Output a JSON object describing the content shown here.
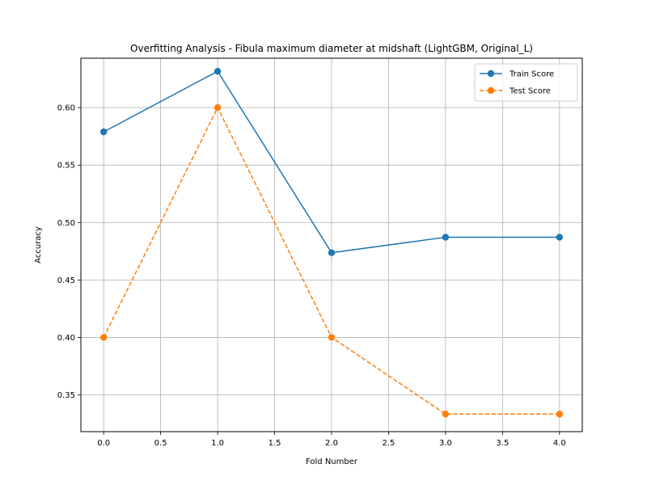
{
  "chart_data": {
    "type": "line",
    "title": "Overfitting Analysis - Fibula maximum diameter at midshaft (LightGBM, Original_L)",
    "xlabel": "Fold Number",
    "ylabel": "Accuracy",
    "x": [
      0,
      1,
      2,
      3,
      4
    ],
    "xlim": [
      -0.2,
      4.2
    ],
    "ylim": [
      0.318,
      0.643
    ],
    "xticks": [
      "0.0",
      "0.5",
      "1.0",
      "1.5",
      "2.0",
      "2.5",
      "3.0",
      "3.5",
      "4.0"
    ],
    "yticks": [
      "0.35",
      "0.40",
      "0.45",
      "0.50",
      "0.55",
      "0.60"
    ],
    "grid": true,
    "legend_position": "top-right",
    "series": [
      {
        "name": "Train Score",
        "values": [
          0.5789,
          0.6316,
          0.4737,
          0.4872,
          0.4872
        ],
        "color": "#1f77b4",
        "linestyle": "solid",
        "marker": "circle"
      },
      {
        "name": "Test Score",
        "values": [
          0.4,
          0.6,
          0.4,
          0.3333,
          0.3333
        ],
        "color": "#ff7f0e",
        "linestyle": "dashed",
        "marker": "circle"
      }
    ]
  }
}
